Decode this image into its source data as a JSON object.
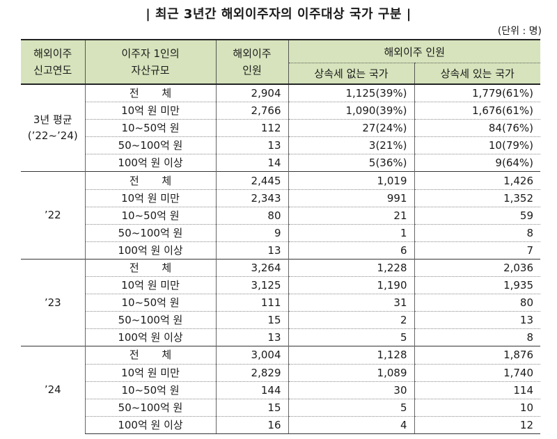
{
  "title": "| 최근 3년간 해외이주자의 이주대상 국가 구분 |",
  "unit": "(단위 : 명)",
  "headers": {
    "year": "해외이주\n신고연도",
    "asset": "이주자 1인의\n자산규모",
    "count": "해외이주\n인원",
    "group": "해외이주 인원",
    "no_tax": "상속세 없는 국가",
    "with_tax": "상속세 있는 국가"
  },
  "groups": [
    {
      "year": "3년 평균\n(’22~’24)",
      "rows": [
        {
          "cat": "전 체",
          "count": "2,904",
          "no_tax": "1,125(39%)",
          "with_tax": "1,779(61%)"
        },
        {
          "cat": "10억 원 미만",
          "count": "2,766",
          "no_tax": "1,090(39%)",
          "with_tax": "1,676(61%)"
        },
        {
          "cat": "10~50억 원",
          "count": "112",
          "no_tax": "27(24%)",
          "with_tax": "84(76%)"
        },
        {
          "cat": "50~100억 원",
          "count": "13",
          "no_tax": "3(21%)",
          "with_tax": "10(79%)"
        },
        {
          "cat": "100억 원 이상",
          "count": "14",
          "no_tax": "5(36%)",
          "with_tax": "9(64%)"
        }
      ]
    },
    {
      "year": "’22",
      "rows": [
        {
          "cat": "전 체",
          "count": "2,445",
          "no_tax": "1,019",
          "with_tax": "1,426"
        },
        {
          "cat": "10억 원 미만",
          "count": "2,343",
          "no_tax": "991",
          "with_tax": "1,352"
        },
        {
          "cat": "10~50억 원",
          "count": "80",
          "no_tax": "21",
          "with_tax": "59"
        },
        {
          "cat": "50~100억 원",
          "count": "9",
          "no_tax": "1",
          "with_tax": "8"
        },
        {
          "cat": "100억 원 이상",
          "count": "13",
          "no_tax": "6",
          "with_tax": "7"
        }
      ]
    },
    {
      "year": "’23",
      "rows": [
        {
          "cat": "전 체",
          "count": "3,264",
          "no_tax": "1,228",
          "with_tax": "2,036"
        },
        {
          "cat": "10억 원 미만",
          "count": "3,125",
          "no_tax": "1,190",
          "with_tax": "1,935"
        },
        {
          "cat": "10~50억 원",
          "count": "111",
          "no_tax": "31",
          "with_tax": "80"
        },
        {
          "cat": "50~100억 원",
          "count": "15",
          "no_tax": "2",
          "with_tax": "13"
        },
        {
          "cat": "100억 원 이상",
          "count": "13",
          "no_tax": "5",
          "with_tax": "8"
        }
      ]
    },
    {
      "year": "’24",
      "rows": [
        {
          "cat": "전 체",
          "count": "3,004",
          "no_tax": "1,128",
          "with_tax": "1,876"
        },
        {
          "cat": "10억 원 미만",
          "count": "2,829",
          "no_tax": "1,089",
          "with_tax": "1,740"
        },
        {
          "cat": "10~50억 원",
          "count": "144",
          "no_tax": "30",
          "with_tax": "114"
        },
        {
          "cat": "50~100억 원",
          "count": "15",
          "no_tax": "5",
          "with_tax": "10"
        },
        {
          "cat": "100억 원 이상",
          "count": "16",
          "no_tax": "4",
          "with_tax": "12"
        }
      ]
    }
  ]
}
